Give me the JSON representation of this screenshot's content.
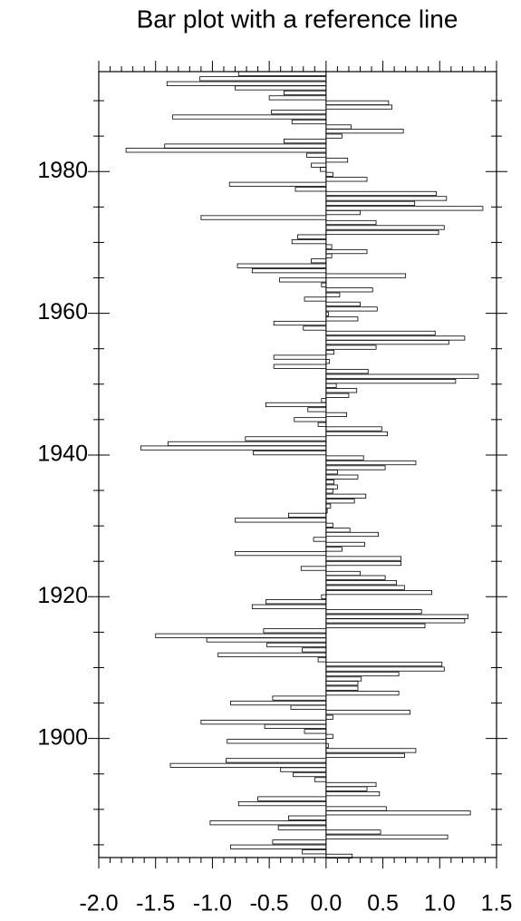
{
  "chart_data": {
    "type": "bar",
    "orientation": "horizontal",
    "title": "Bar plot with a reference line",
    "reference": 0,
    "x": [
      1993.8,
      1993.1,
      1992.4,
      1991.8,
      1991.1,
      1990.4,
      1989.7,
      1989.1,
      1988.4,
      1987.7,
      1987.0,
      1986.3,
      1985.7,
      1985.0,
      1984.3,
      1983.6,
      1983.0,
      1982.3,
      1981.6,
      1980.9,
      1980.3,
      1979.6,
      1978.9,
      1978.2,
      1977.5,
      1976.9,
      1976.2,
      1975.5,
      1974.8,
      1974.2,
      1973.5,
      1972.8,
      1972.1,
      1971.4,
      1970.8,
      1970.1,
      1969.4,
      1968.7,
      1968.1,
      1967.4,
      1966.7,
      1966.0,
      1965.3,
      1964.7,
      1964.0,
      1963.3,
      1962.6,
      1962.0,
      1961.3,
      1960.6,
      1959.9,
      1959.2,
      1958.6,
      1957.9,
      1957.2,
      1956.5,
      1955.9,
      1955.2,
      1954.5,
      1953.8,
      1953.2,
      1952.5,
      1951.8,
      1951.1,
      1950.4,
      1949.8,
      1949.1,
      1948.4,
      1947.7,
      1947.1,
      1946.4,
      1945.7,
      1945.0,
      1944.3,
      1943.7,
      1943.0,
      1942.3,
      1941.6,
      1941.0,
      1940.3,
      1939.6,
      1938.9,
      1938.2,
      1937.6,
      1936.9,
      1936.2,
      1935.5,
      1934.9,
      1934.2,
      1933.5,
      1932.8,
      1932.1,
      1931.5,
      1930.8,
      1930.1,
      1929.4,
      1928.8,
      1928.1,
      1927.4,
      1926.7,
      1926.1,
      1925.4,
      1924.7,
      1924.0,
      1923.3,
      1922.7,
      1922.0,
      1921.3,
      1920.6,
      1920.0,
      1919.3,
      1918.6,
      1917.9,
      1917.2,
      1916.6,
      1915.9,
      1915.2,
      1914.5,
      1913.9,
      1913.2,
      1912.5,
      1911.8,
      1911.1,
      1910.5,
      1909.8,
      1909.1,
      1908.4,
      1907.8,
      1907.1,
      1906.4,
      1905.7,
      1905.0,
      1904.4,
      1903.7,
      1903.0,
      1902.3,
      1901.7,
      1901.0,
      1900.3,
      1899.6,
      1899.0,
      1898.3,
      1897.6,
      1896.9,
      1896.2,
      1895.6,
      1894.9,
      1894.2,
      1893.5,
      1892.9,
      1892.2,
      1891.5,
      1890.8,
      1890.1,
      1889.5,
      1888.8,
      1888.1,
      1887.4,
      1886.8,
      1886.1,
      1885.4,
      1884.7,
      1884.0,
      1883.4
    ],
    "values": [
      -0.77,
      -1.11,
      -1.4,
      -0.8,
      -0.37,
      -0.5,
      0.55,
      0.58,
      -0.48,
      -1.35,
      -0.3,
      0.22,
      0.68,
      0.14,
      -0.37,
      -1.42,
      -1.76,
      -0.17,
      0.19,
      -0.13,
      -0.05,
      0.06,
      0.36,
      -0.85,
      -0.27,
      0.97,
      1.06,
      0.78,
      1.38,
      0.3,
      -1.1,
      0.44,
      1.04,
      0.99,
      -0.25,
      -0.3,
      0.05,
      0.36,
      0.05,
      -0.13,
      -0.78,
      -0.65,
      0.7,
      -0.41,
      -0.04,
      0.41,
      0.12,
      -0.19,
      0.3,
      0.45,
      0.02,
      0.28,
      -0.46,
      -0.2,
      0.96,
      1.22,
      1.08,
      0.44,
      0.07,
      -0.46,
      0.03,
      -0.46,
      0.37,
      1.34,
      1.14,
      0.09,
      0.27,
      0.2,
      -0.04,
      -0.53,
      -0.16,
      0.18,
      -0.28,
      -0.07,
      0.49,
      0.54,
      -0.71,
      -1.39,
      -1.63,
      -0.64,
      0.33,
      0.79,
      0.52,
      0.1,
      0.28,
      0.07,
      0.1,
      0.06,
      0.35,
      0.25,
      0.04,
      0.01,
      -0.33,
      -0.8,
      0.06,
      0.21,
      0.46,
      -0.11,
      0.34,
      0.14,
      -0.8,
      0.66,
      0.66,
      -0.22,
      0.3,
      0.52,
      0.62,
      0.69,
      0.93,
      -0.04,
      -0.53,
      -0.65,
      0.84,
      1.25,
      1.22,
      0.87,
      -0.55,
      -1.5,
      -1.05,
      -0.52,
      -0.21,
      -0.95,
      -0.07,
      1.02,
      1.04,
      0.64,
      0.31,
      0.28,
      0.28,
      0.64,
      -0.47,
      -0.84,
      -0.31,
      0.74,
      0.06,
      -1.1,
      -0.54,
      -0.19,
      0.06,
      -0.87,
      0.02,
      0.79,
      0.69,
      -0.88,
      -1.37,
      -0.4,
      -0.29,
      -0.1,
      0.44,
      0.36,
      0.47,
      -0.6,
      -0.77,
      0.53,
      1.27,
      -0.33,
      -1.02,
      -0.42,
      0.48,
      1.07,
      -0.47,
      -0.84,
      -0.21,
      0.23
    ],
    "color": "#ffffff",
    "edgecolor": "#000000",
    "xlim": [
      -2,
      1.5
    ],
    "xticks": [
      {
        "value": -2,
        "label": "-2.0"
      },
      -1.5,
      {
        "value": -1,
        "label": "-1.0"
      },
      -0.5,
      {
        "value": 0,
        "label": "0.0"
      },
      0.5,
      {
        "value": 1,
        "label": "1.0"
      },
      1.5
    ],
    "ylim": [
      1883.2,
      1994.1
    ],
    "yticks": [
      1900,
      1920,
      1940,
      1960,
      1980
    ]
  }
}
